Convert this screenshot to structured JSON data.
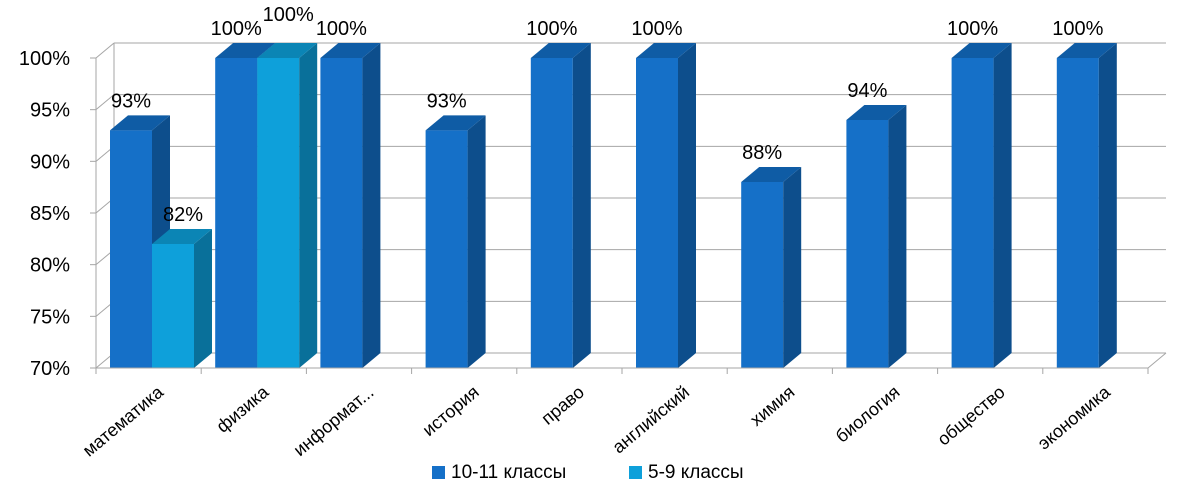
{
  "chart_data": {
    "type": "bar",
    "categories": [
      "математика",
      "физика",
      "информат...",
      "история",
      "право",
      "английский",
      "химия",
      "биология",
      "общество",
      "экономика"
    ],
    "series": [
      {
        "name": "10-11 классы",
        "values": [
          93,
          100,
          100,
          93,
          100,
          100,
          88,
          94,
          100,
          100
        ],
        "labels": [
          "93%",
          "100%",
          "100%",
          "93%",
          "100%",
          "100%",
          "88%",
          "94%",
          "100%",
          "100%"
        ]
      },
      {
        "name": "5-9 классы",
        "values": [
          82,
          100,
          null,
          null,
          null,
          null,
          null,
          null,
          null,
          null
        ],
        "labels": [
          "82%",
          "100%",
          null,
          null,
          null,
          null,
          null,
          null,
          null,
          null
        ]
      }
    ],
    "ylim": [
      70,
      100
    ],
    "yticks": [
      "70%",
      "75%",
      "80%",
      "85%",
      "90%",
      "95%",
      "100%"
    ],
    "grid": true,
    "legend_position": "bottom",
    "three_d": true
  },
  "colors": {
    "series_front": [
      "#1570C8",
      "#0EA0DA"
    ],
    "series_side": [
      "#0D4E8C",
      "#09709A"
    ],
    "series_top": [
      "#0F5CA5",
      "#0B85B5"
    ],
    "grid": "#A6A6A6"
  }
}
